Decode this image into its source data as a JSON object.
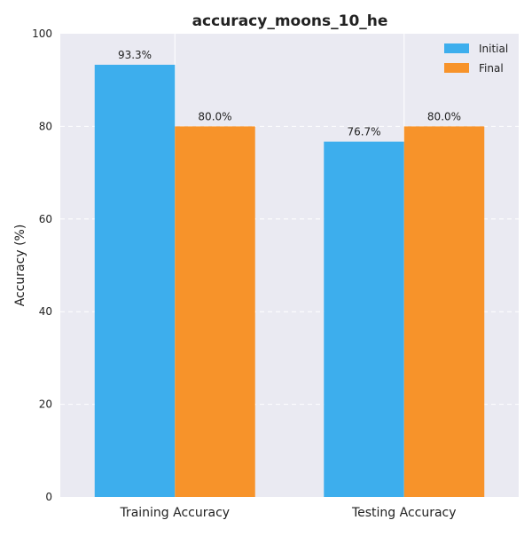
{
  "chart_data": {
    "type": "bar",
    "title": "accuracy_moons_10_he",
    "xlabel": "",
    "ylabel": "Accuracy (%)",
    "ylim": [
      0,
      100
    ],
    "yticks": [
      0,
      20,
      40,
      60,
      80,
      100
    ],
    "categories": [
      "Training Accuracy",
      "Testing Accuracy"
    ],
    "series": [
      {
        "name": "Initial",
        "values": [
          93.3,
          76.7
        ],
        "labels": [
          "93.3%",
          "76.7%"
        ],
        "color": "#3daeed"
      },
      {
        "name": "Final",
        "values": [
          80.0,
          80.0
        ],
        "labels": [
          "80.0%",
          "80.0%"
        ],
        "color": "#f7932a"
      }
    ],
    "grid": true,
    "legend_position": "top-right",
    "background_color": "#eaeaf2"
  }
}
